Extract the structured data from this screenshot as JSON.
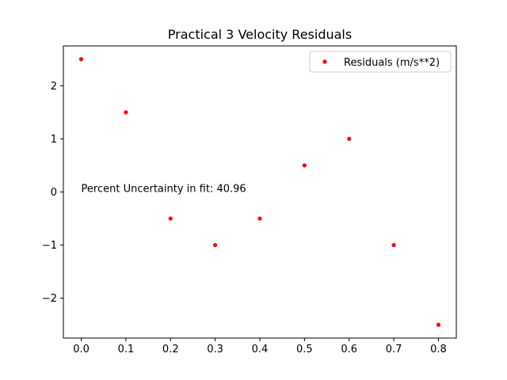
{
  "chart_data": {
    "type": "scatter",
    "title": "Practical 3 Velocity Residuals",
    "xlabel": "",
    "ylabel": "",
    "xlim": [
      -0.04,
      0.84
    ],
    "ylim": [
      -2.75,
      2.75
    ],
    "x_ticks": [
      0.0,
      0.1,
      0.2,
      0.3,
      0.4,
      0.5,
      0.6,
      0.7,
      0.8
    ],
    "x_tick_labels": [
      "0.0",
      "0.1",
      "0.2",
      "0.3",
      "0.4",
      "0.5",
      "0.6",
      "0.7",
      "0.8"
    ],
    "y_ticks": [
      -2,
      -1,
      0,
      1,
      2
    ],
    "y_tick_labels": [
      "−2",
      "−1",
      "0",
      "1",
      "2"
    ],
    "grid": false,
    "legend_position": "top-right",
    "series": [
      {
        "name": "Residuals (m/s**2)",
        "color": "#ff0000",
        "marker": "dot",
        "x": [
          0.0,
          0.1,
          0.2,
          0.3,
          0.4,
          0.5,
          0.6,
          0.7,
          0.8
        ],
        "y": [
          2.5,
          1.5,
          -0.5,
          -1.0,
          -0.5,
          0.5,
          1.0,
          -1.0,
          -2.5
        ]
      }
    ],
    "annotations": [
      {
        "text": "Percent Uncertainty in fit: 40.96",
        "x": 0.0,
        "y": 0.0
      }
    ]
  }
}
